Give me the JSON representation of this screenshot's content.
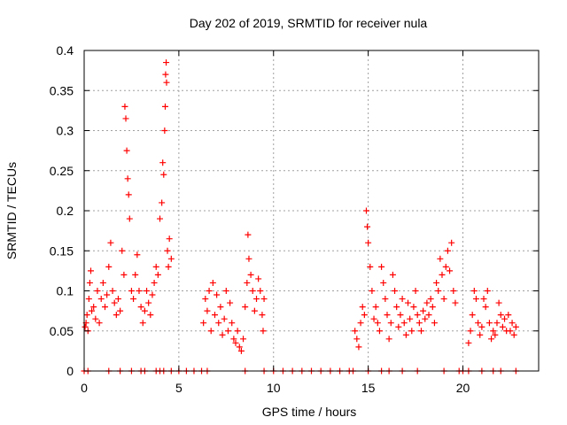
{
  "chart_data": {
    "type": "scatter",
    "title": "Day 202 of 2019, SRMTID for receiver nula",
    "xlabel": "GPS time / hours",
    "ylabel": "SRMTID / TECUs",
    "xlim": [
      0,
      24
    ],
    "ylim": [
      0,
      0.4
    ],
    "grid": true,
    "marker": "+",
    "color": "#ff0000",
    "x_ticks": [
      0,
      5,
      10,
      15,
      20
    ],
    "x_tick_labels": [
      "0",
      "5",
      "10",
      "15",
      "20"
    ],
    "y_ticks": [
      0,
      0.05,
      0.1,
      0.15,
      0.2,
      0.25,
      0.3,
      0.35,
      0.4
    ],
    "y_tick_labels": [
      "0",
      "0.05",
      "0.1",
      "0.15",
      "0.2",
      "0.25",
      "0.3",
      "0.35",
      "0.4"
    ],
    "series": [
      {
        "name": "SRMTID",
        "points": [
          [
            0.05,
            0.055
          ],
          [
            0.1,
            0.06
          ],
          [
            0.15,
            0.07
          ],
          [
            0.2,
            0.05
          ],
          [
            0.25,
            0.09
          ],
          [
            0.3,
            0.11
          ],
          [
            0.35,
            0.125
          ],
          [
            0.4,
            0.075
          ],
          [
            0.5,
            0.08
          ],
          [
            0.6,
            0.065
          ],
          [
            0.7,
            0.1
          ],
          [
            0.8,
            0.06
          ],
          [
            0.9,
            0.09
          ],
          [
            1.0,
            0.11
          ],
          [
            1.1,
            0.08
          ],
          [
            1.2,
            0.095
          ],
          [
            1.3,
            0.13
          ],
          [
            1.4,
            0.16
          ],
          [
            1.5,
            0.1
          ],
          [
            1.6,
            0.085
          ],
          [
            1.7,
            0.07
          ],
          [
            1.8,
            0.09
          ],
          [
            1.9,
            0.075
          ],
          [
            2.0,
            0.15
          ],
          [
            2.1,
            0.12
          ],
          [
            2.15,
            0.33
          ],
          [
            2.2,
            0.315
          ],
          [
            2.25,
            0.275
          ],
          [
            2.3,
            0.24
          ],
          [
            2.35,
            0.22
          ],
          [
            2.4,
            0.19
          ],
          [
            2.5,
            0.1
          ],
          [
            2.6,
            0.09
          ],
          [
            2.7,
            0.12
          ],
          [
            2.8,
            0.145
          ],
          [
            2.9,
            0.1
          ],
          [
            3.0,
            0.08
          ],
          [
            3.1,
            0.06
          ],
          [
            3.2,
            0.075
          ],
          [
            3.3,
            0.1
          ],
          [
            3.4,
            0.085
          ],
          [
            3.5,
            0.07
          ],
          [
            3.6,
            0.095
          ],
          [
            3.7,
            0.11
          ],
          [
            3.8,
            0.13
          ],
          [
            3.9,
            0.12
          ],
          [
            4.0,
            0.19
          ],
          [
            4.1,
            0.21
          ],
          [
            4.15,
            0.26
          ],
          [
            4.2,
            0.245
          ],
          [
            4.25,
            0.3
          ],
          [
            4.28,
            0.33
          ],
          [
            4.3,
            0.37
          ],
          [
            4.33,
            0.385
          ],
          [
            4.35,
            0.36
          ],
          [
            4.4,
            0.15
          ],
          [
            4.45,
            0.13
          ],
          [
            4.5,
            0.165
          ],
          [
            4.6,
            0.14
          ],
          [
            6.3,
            0.06
          ],
          [
            6.4,
            0.09
          ],
          [
            6.5,
            0.075
          ],
          [
            6.6,
            0.1
          ],
          [
            6.7,
            0.05
          ],
          [
            6.8,
            0.11
          ],
          [
            6.9,
            0.07
          ],
          [
            7.0,
            0.095
          ],
          [
            7.1,
            0.06
          ],
          [
            7.2,
            0.08
          ],
          [
            7.3,
            0.045
          ],
          [
            7.4,
            0.065
          ],
          [
            7.5,
            0.1
          ],
          [
            7.6,
            0.05
          ],
          [
            7.7,
            0.085
          ],
          [
            7.8,
            0.06
          ],
          [
            7.9,
            0.04
          ],
          [
            8.0,
            0.035
          ],
          [
            8.1,
            0.05
          ],
          [
            8.2,
            0.03
          ],
          [
            8.3,
            0.025
          ],
          [
            8.4,
            0.04
          ],
          [
            8.5,
            0.08
          ],
          [
            8.6,
            0.11
          ],
          [
            8.65,
            0.17
          ],
          [
            8.7,
            0.14
          ],
          [
            8.8,
            0.12
          ],
          [
            8.9,
            0.1
          ],
          [
            9.0,
            0.075
          ],
          [
            9.1,
            0.09
          ],
          [
            9.2,
            0.115
          ],
          [
            9.3,
            0.1
          ],
          [
            9.4,
            0.07
          ],
          [
            9.45,
            0.05
          ],
          [
            9.5,
            0.09
          ],
          [
            14.3,
            0.05
          ],
          [
            14.4,
            0.04
          ],
          [
            14.5,
            0.03
          ],
          [
            14.6,
            0.06
          ],
          [
            14.7,
            0.08
          ],
          [
            14.8,
            0.07
          ],
          [
            14.9,
            0.2
          ],
          [
            14.95,
            0.18
          ],
          [
            15.0,
            0.16
          ],
          [
            15.1,
            0.13
          ],
          [
            15.2,
            0.1
          ],
          [
            15.3,
            0.065
          ],
          [
            15.4,
            0.08
          ],
          [
            15.5,
            0.06
          ],
          [
            15.6,
            0.05
          ],
          [
            15.7,
            0.13
          ],
          [
            15.8,
            0.11
          ],
          [
            15.9,
            0.09
          ],
          [
            16.0,
            0.07
          ],
          [
            16.1,
            0.04
          ],
          [
            16.2,
            0.06
          ],
          [
            16.3,
            0.12
          ],
          [
            16.4,
            0.1
          ],
          [
            16.5,
            0.08
          ],
          [
            16.6,
            0.055
          ],
          [
            16.7,
            0.07
          ],
          [
            16.8,
            0.09
          ],
          [
            16.9,
            0.06
          ],
          [
            17.0,
            0.045
          ],
          [
            17.1,
            0.085
          ],
          [
            17.2,
            0.065
          ],
          [
            17.3,
            0.05
          ],
          [
            17.4,
            0.08
          ],
          [
            17.5,
            0.1
          ],
          [
            17.6,
            0.07
          ],
          [
            17.7,
            0.06
          ],
          [
            17.8,
            0.05
          ],
          [
            17.9,
            0.075
          ],
          [
            18.0,
            0.065
          ],
          [
            18.1,
            0.085
          ],
          [
            18.2,
            0.07
          ],
          [
            18.3,
            0.09
          ],
          [
            18.4,
            0.08
          ],
          [
            18.5,
            0.06
          ],
          [
            18.6,
            0.11
          ],
          [
            18.7,
            0.1
          ],
          [
            18.8,
            0.14
          ],
          [
            18.9,
            0.12
          ],
          [
            19.0,
            0.09
          ],
          [
            19.1,
            0.13
          ],
          [
            19.2,
            0.15
          ],
          [
            19.3,
            0.125
          ],
          [
            19.4,
            0.16
          ],
          [
            19.5,
            0.1
          ],
          [
            19.6,
            0.085
          ],
          [
            20.3,
            0.035
          ],
          [
            20.4,
            0.05
          ],
          [
            20.5,
            0.07
          ],
          [
            20.6,
            0.1
          ],
          [
            20.7,
            0.09
          ],
          [
            20.8,
            0.06
          ],
          [
            20.9,
            0.045
          ],
          [
            21.0,
            0.055
          ],
          [
            21.1,
            0.09
          ],
          [
            21.2,
            0.08
          ],
          [
            21.3,
            0.1
          ],
          [
            21.4,
            0.06
          ],
          [
            21.5,
            0.04
          ],
          [
            21.6,
            0.05
          ],
          [
            21.7,
            0.045
          ],
          [
            21.8,
            0.06
          ],
          [
            21.9,
            0.085
          ],
          [
            22.0,
            0.07
          ],
          [
            22.1,
            0.055
          ],
          [
            22.2,
            0.065
          ],
          [
            22.3,
            0.05
          ],
          [
            22.4,
            0.07
          ],
          [
            22.5,
            0.05
          ],
          [
            22.6,
            0.06
          ],
          [
            22.7,
            0.045
          ],
          [
            22.8,
            0.055
          ],
          [
            0.0,
            0
          ],
          [
            0.2,
            0
          ],
          [
            1.3,
            0
          ],
          [
            1.9,
            0
          ],
          [
            2.5,
            0
          ],
          [
            3.0,
            0
          ],
          [
            3.2,
            0
          ],
          [
            3.8,
            0
          ],
          [
            4.0,
            0
          ],
          [
            4.2,
            0
          ],
          [
            4.6,
            0
          ],
          [
            5.0,
            0
          ],
          [
            5.4,
            0
          ],
          [
            5.8,
            0
          ],
          [
            6.2,
            0
          ],
          [
            6.5,
            0
          ],
          [
            8.5,
            0
          ],
          [
            9.5,
            0
          ],
          [
            10.0,
            0
          ],
          [
            10.5,
            0
          ],
          [
            11.0,
            0
          ],
          [
            11.5,
            0
          ],
          [
            12.0,
            0
          ],
          [
            12.5,
            0
          ],
          [
            13.0,
            0
          ],
          [
            13.5,
            0
          ],
          [
            14.0,
            0
          ],
          [
            14.2,
            0
          ],
          [
            15.0,
            0
          ],
          [
            15.7,
            0
          ],
          [
            16.1,
            0
          ],
          [
            16.8,
            0
          ],
          [
            17.6,
            0
          ],
          [
            19.0,
            0
          ],
          [
            19.8,
            0
          ],
          [
            20.0,
            0
          ],
          [
            20.3,
            0
          ],
          [
            21.0,
            0
          ],
          [
            21.6,
            0
          ],
          [
            22.0,
            0
          ],
          [
            22.8,
            0
          ]
        ]
      }
    ]
  }
}
